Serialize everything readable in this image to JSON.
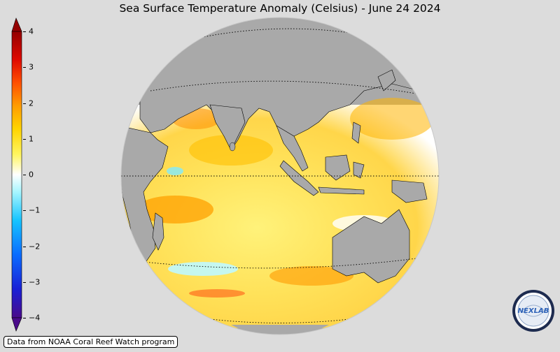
{
  "title": "Sea Surface Temperature Anomaly (Celsius) - June 24 2024",
  "colorbar": {
    "ticks": [
      "4",
      "3",
      "2",
      "1",
      "0",
      "−1",
      "−2",
      "−3",
      "−4"
    ],
    "min": -4,
    "max": 4,
    "colors": [
      "#3a0a7a",
      "#2b2fd0",
      "#0072ff",
      "#00c8ff",
      "#9ff4ff",
      "#ffffff",
      "#fff36a",
      "#ffd200",
      "#ff9a00",
      "#ff4a00",
      "#d60000",
      "#8a0000"
    ]
  },
  "source_text": "Data from NOAA Coral Reef Watch program",
  "logo": {
    "text": "NEXLAB"
  },
  "map_colors": {
    "land": "#a9a9a9",
    "background": "#dcdcdc"
  }
}
